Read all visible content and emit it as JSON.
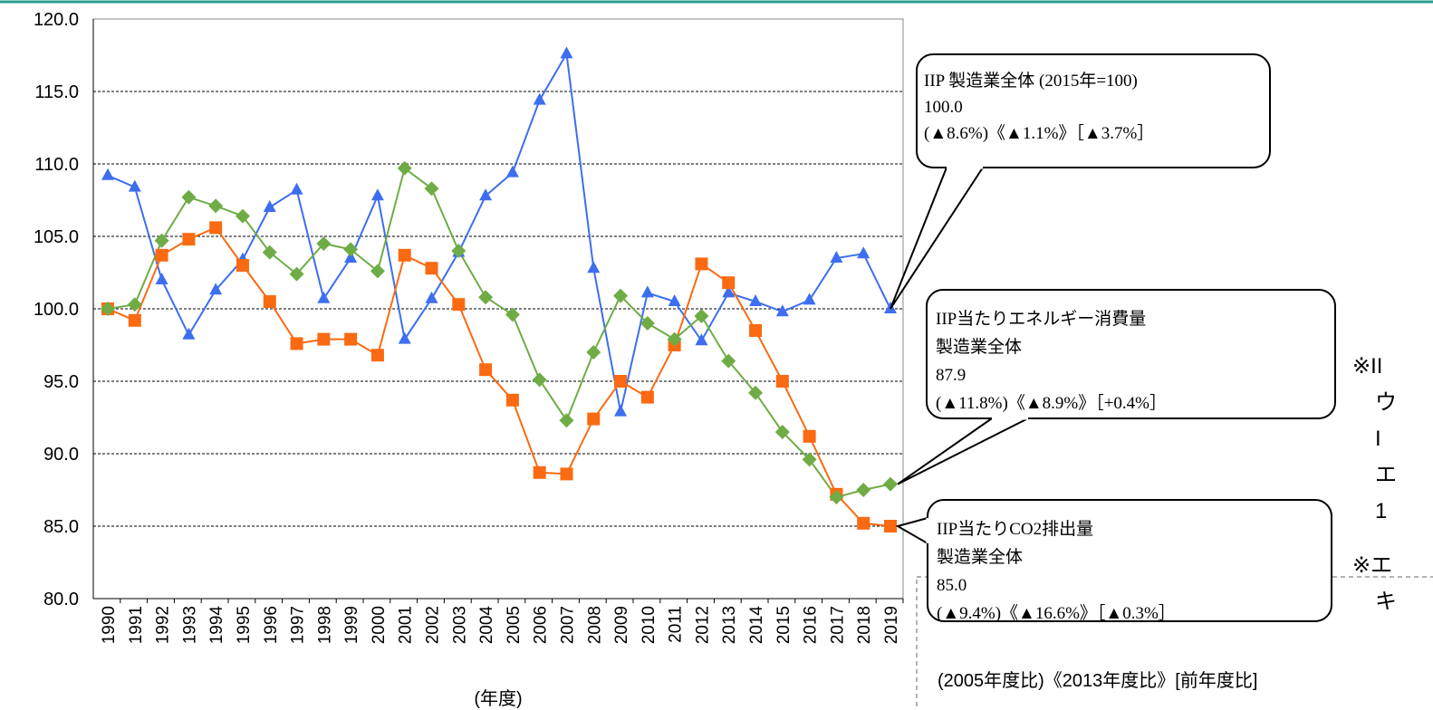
{
  "chart_data": {
    "type": "line",
    "x_label": "(年度)",
    "categories": [
      "1990",
      "1991",
      "1992",
      "1993",
      "1994",
      "1995",
      "1996",
      "1997",
      "1998",
      "1999",
      "2000",
      "2001",
      "2002",
      "2003",
      "2004",
      "2005",
      "2006",
      "2007",
      "2008",
      "2009",
      "2010",
      "2011",
      "2012",
      "2013",
      "2014",
      "2015",
      "2016",
      "2017",
      "2018",
      "2019"
    ],
    "series": [
      {
        "name": "IIP 製造業全体 (2015年=100)",
        "color": "#3d6ef0",
        "marker": "triangle",
        "values": [
          109.2,
          108.4,
          102.0,
          98.2,
          101.3,
          103.4,
          107.0,
          108.2,
          100.7,
          103.5,
          107.8,
          97.9,
          100.7,
          103.9,
          107.8,
          109.4,
          114.4,
          117.6,
          102.8,
          92.9,
          101.1,
          100.5,
          97.8,
          101.1,
          100.5,
          99.8,
          100.6,
          103.5,
          103.8,
          100.0
        ]
      },
      {
        "name": "IIP当たりCO2排出量 製造業全体",
        "color": "#fa6a12",
        "marker": "square",
        "values": [
          100.0,
          99.2,
          103.7,
          104.8,
          105.6,
          103.0,
          100.5,
          97.6,
          97.9,
          97.9,
          96.8,
          103.7,
          102.8,
          100.3,
          95.8,
          93.7,
          88.7,
          88.6,
          92.4,
          95.0,
          93.9,
          97.5,
          103.1,
          101.8,
          98.5,
          95.0,
          91.2,
          87.2,
          85.2,
          85.0
        ]
      },
      {
        "name": "IIP当たりエネルギー消費量 製造業全体",
        "color": "#6fac46",
        "marker": "diamond",
        "values": [
          100.0,
          100.3,
          104.7,
          107.7,
          107.1,
          106.4,
          103.9,
          102.4,
          104.5,
          104.1,
          102.6,
          109.7,
          108.3,
          104.0,
          100.8,
          99.6,
          95.1,
          92.3,
          97.0,
          100.9,
          99.0,
          97.9,
          99.5,
          96.4,
          94.2,
          91.5,
          89.6,
          87.0,
          87.5,
          87.9
        ]
      }
    ],
    "ylim": [
      80,
      120
    ],
    "yticks": [
      {
        "value": 80,
        "label": "80.0"
      },
      {
        "value": 85,
        "label": "85.0"
      },
      {
        "value": 90,
        "label": "90.0"
      },
      {
        "value": 95,
        "label": "95.0"
      },
      {
        "value": 100,
        "label": "100.0"
      },
      {
        "value": 105,
        "label": "105.0"
      },
      {
        "value": 110,
        "label": "110.0"
      },
      {
        "value": 115,
        "label": "115.0"
      },
      {
        "value": 120,
        "label": "120.0"
      }
    ],
    "grid": true,
    "annotations": [
      {
        "lines": [
          "IIP 製造業全体 (2015年=100)",
          "100.0",
          "(▲8.6%)《▲1.1%》［▲3.7%］"
        ]
      },
      {
        "lines": [
          "IIP当たりエネルギー消費量",
          "製造業全体",
          "87.9",
          "(▲11.8%)《▲8.9%》［+0.4%］"
        ]
      },
      {
        "lines": [
          "IIP当たりCO2排出量",
          "製造業全体",
          "85.0",
          "(▲9.4%)《▲16.6%》［▲0.3%］"
        ]
      }
    ],
    "comparison_key": "(2005年度比)《2013年度比》[前年度比]",
    "side_notes": [
      [
        "※II",
        "ウ",
        "I",
        "エ",
        "1"
      ],
      [
        "※エ",
        "キ"
      ]
    ]
  }
}
